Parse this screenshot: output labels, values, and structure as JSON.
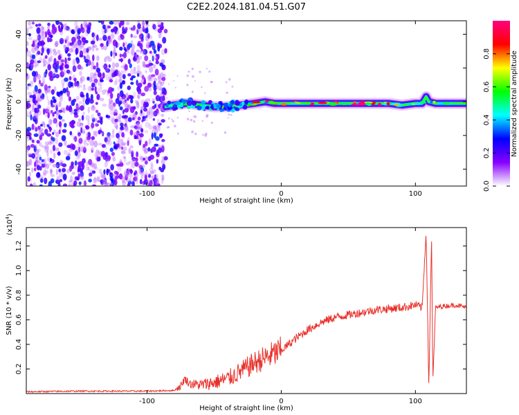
{
  "title": "C2E2.2024.181.04.51.G07",
  "chart_data": [
    {
      "type": "heatmap",
      "name": "spectrogram",
      "xlabel": "Height of straight line (km)",
      "ylabel": "Frequency (Hz)",
      "xlim": [
        -190,
        138
      ],
      "ylim": [
        -50,
        48
      ],
      "x_ticks": [
        -100,
        0,
        100
      ],
      "y_ticks": [
        -40,
        -20,
        0,
        20,
        40
      ],
      "noise_region_x": [
        -190,
        -86
      ],
      "signal_ridge": {
        "x": [
          -86,
          -80,
          -70,
          -60,
          -50,
          -40,
          -30,
          -20,
          -12,
          -5,
          0,
          10,
          20,
          30,
          40,
          50,
          60,
          70,
          80,
          90,
          100,
          105,
          108,
          110,
          115,
          125,
          138
        ],
        "y": [
          -3,
          -2,
          -1,
          -2,
          -3,
          -3,
          -2,
          -1,
          0,
          -1,
          -1,
          -1,
          -1,
          -1,
          -1,
          -1,
          -1,
          -1,
          -1,
          -2,
          -1,
          -1,
          3,
          0,
          -1,
          -1,
          -1
        ]
      },
      "colorbar": {
        "label": "Normalized spectral amplitude",
        "range": [
          0.0,
          1.0
        ],
        "ticks": [
          0.0,
          0.2,
          0.4,
          0.6,
          0.8
        ],
        "colormap": [
          "#ffffff",
          "#8800ff",
          "#0000ff",
          "#00ffff",
          "#00ff00",
          "#ffff00",
          "#ff0000",
          "#ff0080"
        ]
      }
    },
    {
      "type": "line",
      "name": "snr",
      "xlabel": "Height of straight line (km)",
      "ylabel": "SNR (10 * v/v)",
      "yscale_label": "(x10",
      "yscale_exp": "4",
      "yscale_close": ")",
      "xlim": [
        -190,
        138
      ],
      "ylim": [
        0,
        1.35
      ],
      "x_ticks": [
        -100,
        0,
        100
      ],
      "y_ticks": [
        0.2,
        0.4,
        0.6,
        0.8,
        1.0,
        1.2
      ],
      "color": "#e8302a",
      "series": [
        {
          "x": [
            -190,
            -150,
            -100,
            -80,
            -75,
            -72,
            -68,
            -60,
            -50,
            -40,
            -30,
            -20,
            -10,
            0,
            10,
            20,
            30,
            40,
            50,
            60,
            70,
            80,
            90,
            100,
            105,
            108,
            110,
            112,
            113,
            115,
            120,
            130,
            138
          ],
          "y": [
            0.015,
            0.02,
            0.02,
            0.025,
            0.06,
            0.12,
            0.08,
            0.07,
            0.09,
            0.12,
            0.18,
            0.25,
            0.3,
            0.35,
            0.44,
            0.52,
            0.58,
            0.62,
            0.64,
            0.66,
            0.68,
            0.69,
            0.7,
            0.72,
            0.7,
            1.32,
            0.05,
            1.28,
            0.1,
            0.7,
            0.71,
            0.72,
            0.7
          ]
        }
      ]
    }
  ]
}
